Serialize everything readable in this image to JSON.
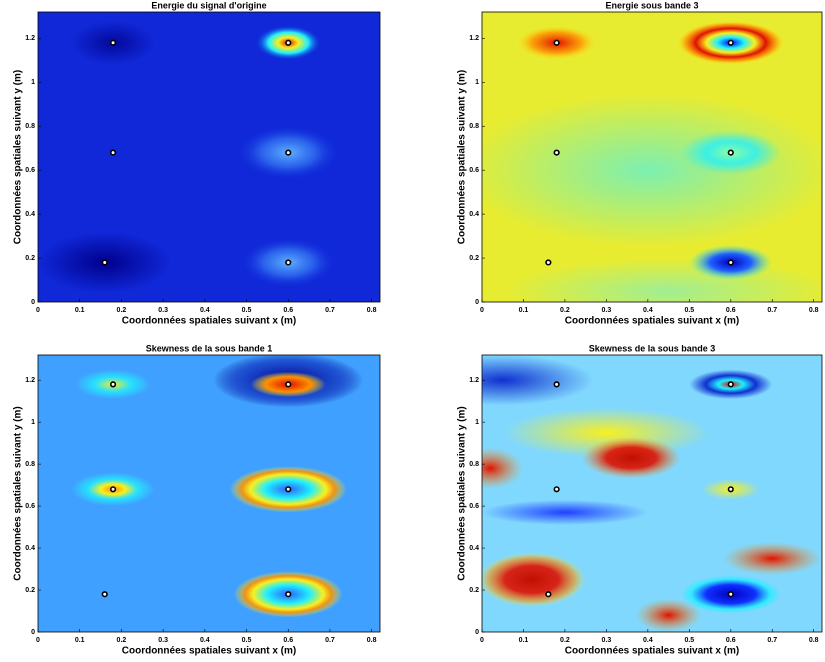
{
  "chart_data": [
    {
      "type": "scatter",
      "title": "Energie du signal d'origine",
      "xlabel": "Coordonnées spatiales suivant x (m)",
      "ylabel": "Coordonnées spatiales suivant y (m)",
      "x": [
        0.18,
        0.6,
        0.18,
        0.6,
        0.16,
        0.6
      ],
      "y": [
        1.18,
        1.18,
        0.68,
        0.68,
        0.18,
        0.18
      ],
      "xlim": [
        0,
        0.82
      ],
      "xticks": [
        0,
        0.1,
        0.2,
        0.3,
        0.4,
        0.5,
        0.6,
        0.7,
        0.8
      ],
      "ylim": [
        0,
        1.32
      ],
      "yticks": [
        0,
        0.2,
        0.4,
        0.6,
        0.8,
        1,
        1.2
      ],
      "color": "#000000"
    },
    {
      "type": "scatter",
      "title": "Energie sous bande 3",
      "xlabel": "Coordonnées spatiales suivant x (m)",
      "ylabel": "Coordonnées spatiales suivant y (m)",
      "x": [
        0.18,
        0.6,
        0.18,
        0.6,
        0.16,
        0.6
      ],
      "y": [
        1.18,
        1.18,
        0.68,
        0.68,
        0.18,
        0.18
      ],
      "xlim": [
        0,
        0.82
      ],
      "xticks": [
        0,
        0.1,
        0.2,
        0.3,
        0.4,
        0.5,
        0.6,
        0.7,
        0.8
      ],
      "ylim": [
        0,
        1.32
      ],
      "yticks": [
        0,
        0.2,
        0.4,
        0.6,
        0.8,
        1,
        1.2
      ],
      "color": "#000000"
    },
    {
      "type": "scatter",
      "title": "Skewness de la sous bande 1",
      "xlabel": "Coordonnées spatiales suivant x (m)",
      "ylabel": "Coordonnées spatiales suivant y (m)",
      "x": [
        0.18,
        0.6,
        0.18,
        0.6,
        0.16,
        0.6
      ],
      "y": [
        1.18,
        1.18,
        0.68,
        0.68,
        0.18,
        0.18
      ],
      "xlim": [
        0,
        0.82
      ],
      "xticks": [
        0,
        0.1,
        0.2,
        0.3,
        0.4,
        0.5,
        0.6,
        0.7,
        0.8
      ],
      "ylim": [
        0,
        1.32
      ],
      "yticks": [
        0,
        0.2,
        0.4,
        0.6,
        0.8,
        1,
        1.2
      ],
      "color": "#000000"
    },
    {
      "type": "scatter",
      "title": "Skewness de la sous bande 3",
      "xlabel": "Coordonnées spatiales suivant x (m)",
      "ylabel": "Coordonnées spatiales suivant y (m)",
      "x": [
        0.18,
        0.6,
        0.18,
        0.6,
        0.16,
        0.6
      ],
      "y": [
        1.18,
        1.18,
        0.68,
        0.68,
        0.18,
        0.18
      ],
      "xlim": [
        0,
        0.82
      ],
      "xticks": [
        0,
        0.1,
        0.2,
        0.3,
        0.4,
        0.5,
        0.6,
        0.7,
        0.8
      ],
      "ylim": [
        0,
        1.32
      ],
      "yticks": [
        0,
        0.2,
        0.4,
        0.6,
        0.8,
        1,
        1.2
      ],
      "color": "#000000"
    }
  ]
}
